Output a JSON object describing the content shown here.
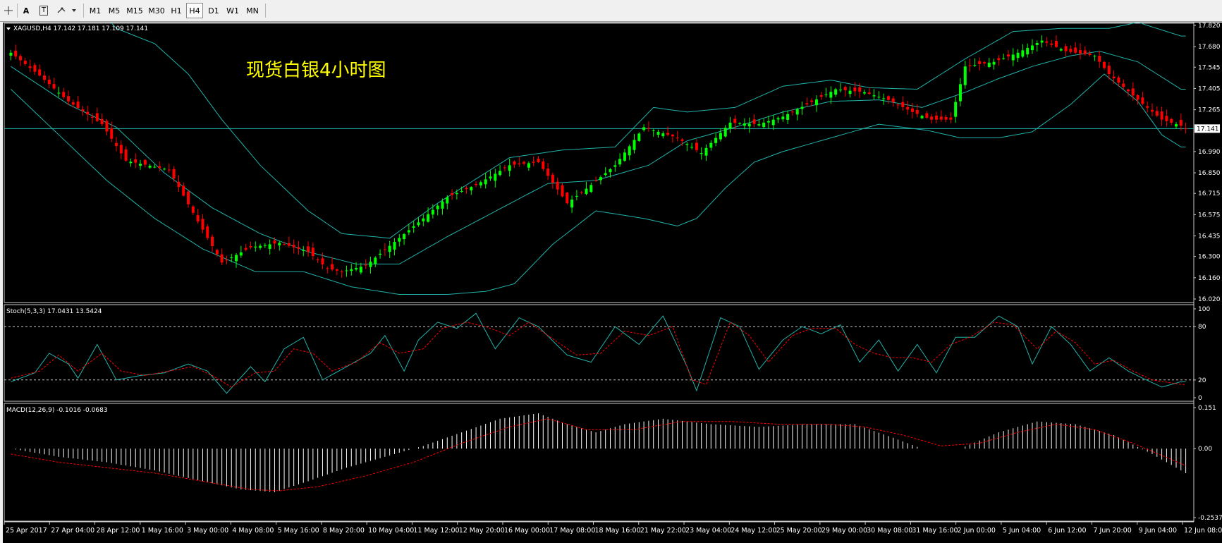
{
  "toolbar": {
    "tools": [
      {
        "name": "crosshair-icon"
      },
      {
        "name": "text-tool",
        "label": "A"
      },
      {
        "name": "text-label-tool",
        "label": "T"
      },
      {
        "name": "shapes-dropdown-icon"
      }
    ],
    "timeframes": [
      "M1",
      "M5",
      "M15",
      "M30",
      "H1",
      "H4",
      "D1",
      "W1",
      "MN"
    ],
    "active_timeframe": "H4"
  },
  "main_panel": {
    "symbol_header": "XAGUSD,H4  17.142 17.181 17.109 17.141",
    "title": "现货白银4小时图",
    "title_color": "#ffff00",
    "current_price_label": "17.141",
    "price_ticks": [
      "17.820",
      "17.680",
      "17.545",
      "17.405",
      "17.265",
      "16.990",
      "16.850",
      "16.715",
      "16.575",
      "16.435",
      "16.300",
      "16.160",
      "16.020"
    ]
  },
  "stoch_panel": {
    "header": "Stoch(5,3,3) 17.0431 13.5424",
    "ticks": [
      "100",
      "80",
      "20",
      "0"
    ]
  },
  "macd_panel": {
    "header": "MACD(12,26,9) -0.1016 -0.0683",
    "ticks": [
      "0.151",
      "0.00",
      "-0.2537"
    ]
  },
  "time_labels": [
    "25 Apr 2017",
    "27 Apr 04:00",
    "28 Apr 12:00",
    "1 May 16:00",
    "3 May 00:00",
    "4 May 08:00",
    "5 May 16:00",
    "8 May 20:00",
    "10 May 04:00",
    "11 May 12:00",
    "12 May 20:00",
    "16 May 00:00",
    "17 May 08:00",
    "18 May 16:00",
    "21 May 22:00",
    "23 May 04:00",
    "24 May 12:00",
    "25 May 20:00",
    "29 May 00:00",
    "30 May 08:00",
    "31 May 16:00",
    "2 Jun 00:00",
    "5 Jun 04:00",
    "6 Jun 12:00",
    "7 Jun 20:00",
    "9 Jun 04:00",
    "12 Jun 08:00"
  ],
  "colors": {
    "background": "#000000",
    "bull_candle": "#00ff00",
    "bear_candle": "#ff0000",
    "bollinger": "#20b2aa",
    "stoch_main": "#20b2aa",
    "stoch_signal": "#ff0000",
    "macd_hist": "#ffffff",
    "macd_signal": "#ff0000"
  },
  "chart_data": {
    "type": "candlestick",
    "symbol": "XAGUSD",
    "timeframe": "H4",
    "last": {
      "open": 17.142,
      "high": 17.181,
      "low": 17.109,
      "close": 17.141
    },
    "close_path": [
      [
        0,
        17.64
      ],
      [
        6,
        17.49
      ],
      [
        12,
        17.32
      ],
      [
        19,
        17.17
      ],
      [
        24,
        16.93
      ],
      [
        33,
        16.87
      ],
      [
        39,
        16.53
      ],
      [
        44,
        16.26
      ],
      [
        50,
        16.36
      ],
      [
        56,
        16.39
      ],
      [
        62,
        16.33
      ],
      [
        66,
        16.22
      ],
      [
        69,
        16.2
      ],
      [
        74,
        16.24
      ],
      [
        79,
        16.37
      ],
      [
        86,
        16.55
      ],
      [
        91,
        16.69
      ],
      [
        97,
        16.77
      ],
      [
        104,
        16.9
      ],
      [
        110,
        16.92
      ],
      [
        116,
        16.65
      ],
      [
        121,
        16.77
      ],
      [
        126,
        16.9
      ],
      [
        132,
        17.15
      ],
      [
        139,
        17.08
      ],
      [
        144,
        16.98
      ],
      [
        150,
        17.18
      ],
      [
        156,
        17.17
      ],
      [
        161,
        17.22
      ],
      [
        166,
        17.3
      ],
      [
        172,
        17.4
      ],
      [
        178,
        17.38
      ],
      [
        183,
        17.33
      ],
      [
        188,
        17.25
      ],
      [
        192,
        17.2
      ],
      [
        196,
        17.2
      ],
      [
        199,
        17.55
      ],
      [
        205,
        17.58
      ],
      [
        210,
        17.64
      ],
      [
        215,
        17.72
      ],
      [
        220,
        17.65
      ],
      [
        226,
        17.62
      ],
      [
        229,
        17.5
      ],
      [
        235,
        17.33
      ],
      [
        240,
        17.2
      ],
      [
        246,
        17.14
      ]
    ],
    "bollinger_upper": [
      [
        0,
        18.3
      ],
      [
        7,
        18.4
      ],
      [
        15,
        18.05
      ],
      [
        22,
        17.8
      ],
      [
        30,
        17.7
      ],
      [
        37,
        17.5
      ],
      [
        44,
        17.2
      ],
      [
        52,
        16.9
      ],
      [
        62,
        16.6
      ],
      [
        69,
        16.45
      ],
      [
        79,
        16.42
      ],
      [
        89,
        16.65
      ],
      [
        104,
        16.95
      ],
      [
        115,
        17.0
      ],
      [
        126,
        17.02
      ],
      [
        134,
        17.28
      ],
      [
        141,
        17.25
      ],
      [
        151,
        17.28
      ],
      [
        161,
        17.42
      ],
      [
        171,
        17.46
      ],
      [
        179,
        17.41
      ],
      [
        189,
        17.4
      ],
      [
        199,
        17.6
      ],
      [
        209,
        17.78
      ],
      [
        219,
        17.8
      ],
      [
        229,
        17.8
      ],
      [
        235,
        17.84
      ],
      [
        244,
        17.75
      ]
    ],
    "bollinger_middle": [
      [
        0,
        17.55
      ],
      [
        12,
        17.3
      ],
      [
        22,
        17.15
      ],
      [
        32,
        16.85
      ],
      [
        42,
        16.62
      ],
      [
        52,
        16.45
      ],
      [
        62,
        16.33
      ],
      [
        72,
        16.25
      ],
      [
        81,
        16.25
      ],
      [
        91,
        16.43
      ],
      [
        103,
        16.63
      ],
      [
        112,
        16.78
      ],
      [
        122,
        16.8
      ],
      [
        133,
        16.9
      ],
      [
        141,
        17.06
      ],
      [
        151,
        17.15
      ],
      [
        161,
        17.25
      ],
      [
        171,
        17.32
      ],
      [
        181,
        17.33
      ],
      [
        190,
        17.28
      ],
      [
        199,
        17.38
      ],
      [
        206,
        17.47
      ],
      [
        213,
        17.55
      ],
      [
        221,
        17.62
      ],
      [
        227,
        17.65
      ],
      [
        235,
        17.58
      ],
      [
        244,
        17.4
      ]
    ],
    "bollinger_lower": [
      [
        0,
        17.4
      ],
      [
        10,
        17.1
      ],
      [
        20,
        16.8
      ],
      [
        30,
        16.55
      ],
      [
        40,
        16.35
      ],
      [
        51,
        16.2
      ],
      [
        61,
        16.2
      ],
      [
        71,
        16.1
      ],
      [
        81,
        16.05
      ],
      [
        91,
        16.05
      ],
      [
        99,
        16.07
      ],
      [
        105,
        16.12
      ],
      [
        113,
        16.38
      ],
      [
        122,
        16.6
      ],
      [
        132,
        16.55
      ],
      [
        139,
        16.5
      ],
      [
        143,
        16.55
      ],
      [
        149,
        16.75
      ],
      [
        155,
        16.92
      ],
      [
        161,
        16.99
      ],
      [
        171,
        17.08
      ],
      [
        181,
        17.17
      ],
      [
        191,
        17.13
      ],
      [
        198,
        17.08
      ],
      [
        206,
        17.08
      ],
      [
        213,
        17.12
      ],
      [
        221,
        17.3
      ],
      [
        228,
        17.5
      ],
      [
        235,
        17.32
      ],
      [
        240,
        17.1
      ],
      [
        244,
        17.02
      ]
    ],
    "stoch_main": [
      [
        0,
        18
      ],
      [
        5,
        28
      ],
      [
        8,
        50
      ],
      [
        12,
        38
      ],
      [
        14,
        22
      ],
      [
        18,
        60
      ],
      [
        22,
        20
      ],
      [
        27,
        25
      ],
      [
        32,
        28
      ],
      [
        37,
        38
      ],
      [
        41,
        30
      ],
      [
        45,
        5
      ],
      [
        50,
        35
      ],
      [
        53,
        18
      ],
      [
        57,
        55
      ],
      [
        61,
        68
      ],
      [
        65,
        20
      ],
      [
        70,
        35
      ],
      [
        75,
        50
      ],
      [
        78,
        70
      ],
      [
        82,
        30
      ],
      [
        85,
        65
      ],
      [
        89,
        85
      ],
      [
        93,
        78
      ],
      [
        97,
        95
      ],
      [
        101,
        55
      ],
      [
        106,
        90
      ],
      [
        110,
        80
      ],
      [
        116,
        48
      ],
      [
        121,
        40
      ],
      [
        126,
        80
      ],
      [
        131,
        60
      ],
      [
        136,
        92
      ],
      [
        141,
        35
      ],
      [
        143,
        8
      ],
      [
        148,
        90
      ],
      [
        152,
        80
      ],
      [
        156,
        32
      ],
      [
        161,
        65
      ],
      [
        165,
        80
      ],
      [
        169,
        72
      ],
      [
        173,
        82
      ],
      [
        177,
        40
      ],
      [
        181,
        65
      ],
      [
        185,
        30
      ],
      [
        189,
        60
      ],
      [
        193,
        28
      ],
      [
        197,
        68
      ],
      [
        201,
        68
      ],
      [
        206,
        92
      ],
      [
        210,
        80
      ],
      [
        213,
        38
      ],
      [
        217,
        80
      ],
      [
        221,
        60
      ],
      [
        225,
        30
      ],
      [
        229,
        45
      ],
      [
        233,
        30
      ],
      [
        236,
        22
      ],
      [
        240,
        12
      ],
      [
        244,
        18
      ]
    ],
    "stoch_signal": [
      [
        0,
        22
      ],
      [
        6,
        30
      ],
      [
        10,
        48
      ],
      [
        14,
        30
      ],
      [
        19,
        50
      ],
      [
        23,
        30
      ],
      [
        28,
        25
      ],
      [
        33,
        30
      ],
      [
        38,
        35
      ],
      [
        42,
        25
      ],
      [
        46,
        12
      ],
      [
        51,
        28
      ],
      [
        55,
        30
      ],
      [
        59,
        55
      ],
      [
        63,
        50
      ],
      [
        67,
        30
      ],
      [
        72,
        40
      ],
      [
        77,
        62
      ],
      [
        81,
        50
      ],
      [
        86,
        55
      ],
      [
        90,
        78
      ],
      [
        95,
        85
      ],
      [
        99,
        80
      ],
      [
        104,
        70
      ],
      [
        108,
        85
      ],
      [
        112,
        70
      ],
      [
        118,
        48
      ],
      [
        123,
        50
      ],
      [
        128,
        75
      ],
      [
        133,
        70
      ],
      [
        138,
        80
      ],
      [
        142,
        20
      ],
      [
        145,
        15
      ],
      [
        150,
        85
      ],
      [
        154,
        70
      ],
      [
        158,
        40
      ],
      [
        163,
        70
      ],
      [
        167,
        78
      ],
      [
        172,
        78
      ],
      [
        176,
        60
      ],
      [
        180,
        50
      ],
      [
        184,
        45
      ],
      [
        188,
        45
      ],
      [
        192,
        40
      ],
      [
        196,
        60
      ],
      [
        200,
        68
      ],
      [
        205,
        85
      ],
      [
        209,
        82
      ],
      [
        214,
        55
      ],
      [
        218,
        75
      ],
      [
        222,
        62
      ],
      [
        226,
        38
      ],
      [
        230,
        42
      ],
      [
        234,
        30
      ],
      [
        238,
        20
      ],
      [
        244,
        15
      ]
    ],
    "macd_hist": [
      [
        0,
        0.0
      ],
      [
        10,
        -0.03
      ],
      [
        20,
        -0.05
      ],
      [
        30,
        -0.08
      ],
      [
        40,
        -0.12
      ],
      [
        48,
        -0.15
      ],
      [
        55,
        -0.16
      ],
      [
        62,
        -0.12
      ],
      [
        70,
        -0.07
      ],
      [
        78,
        -0.03
      ],
      [
        86,
        0.01
      ],
      [
        94,
        0.06
      ],
      [
        102,
        0.11
      ],
      [
        110,
        0.13
      ],
      [
        116,
        0.09
      ],
      [
        122,
        0.06
      ],
      [
        128,
        0.09
      ],
      [
        136,
        0.11
      ],
      [
        146,
        0.09
      ],
      [
        156,
        0.08
      ],
      [
        166,
        0.09
      ],
      [
        176,
        0.09
      ],
      [
        184,
        0.04
      ],
      [
        190,
        0.0
      ],
      [
        198,
        0.0
      ],
      [
        206,
        0.06
      ],
      [
        214,
        0.1
      ],
      [
        222,
        0.09
      ],
      [
        230,
        0.05
      ],
      [
        238,
        -0.02
      ],
      [
        246,
        -0.1
      ]
    ],
    "macd_signal": [
      [
        0,
        -0.02
      ],
      [
        10,
        -0.05
      ],
      [
        20,
        -0.07
      ],
      [
        30,
        -0.09
      ],
      [
        40,
        -0.12
      ],
      [
        50,
        -0.15
      ],
      [
        56,
        -0.155
      ],
      [
        64,
        -0.14
      ],
      [
        74,
        -0.1
      ],
      [
        84,
        -0.05
      ],
      [
        94,
        0.02
      ],
      [
        104,
        0.08
      ],
      [
        112,
        0.11
      ],
      [
        120,
        0.07
      ],
      [
        130,
        0.07
      ],
      [
        140,
        0.1
      ],
      [
        150,
        0.1
      ],
      [
        160,
        0.09
      ],
      [
        170,
        0.09
      ],
      [
        178,
        0.08
      ],
      [
        186,
        0.05
      ],
      [
        194,
        0.01
      ],
      [
        202,
        0.02
      ],
      [
        210,
        0.06
      ],
      [
        218,
        0.09
      ],
      [
        226,
        0.07
      ],
      [
        234,
        0.02
      ],
      [
        242,
        -0.04
      ],
      [
        246,
        -0.07
      ]
    ],
    "price_ylim": [
      16.02,
      17.82
    ],
    "stoch_ylim": [
      0,
      100
    ],
    "macd_ylim": [
      -0.2537,
      0.151
    ]
  }
}
